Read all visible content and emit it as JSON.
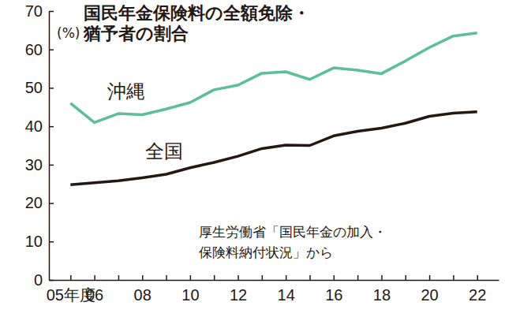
{
  "chart_data": {
    "type": "line",
    "title": [
      "国民年金保険料の全額免除・",
      "猶予者の割合"
    ],
    "y_label": "(%)",
    "source": [
      "厚生労働省「国民年金の加入・",
      "保険料納付状況」から"
    ],
    "categories": [
      "05年度",
      "06",
      null,
      "08",
      null,
      "10",
      null,
      "12",
      null,
      "14",
      null,
      "16",
      null,
      "18",
      null,
      "20",
      null,
      "22"
    ],
    "series": [
      {
        "name": "沖縄",
        "color": "#5cbf95",
        "values": [
          46,
          41,
          43.3,
          43,
          44.5,
          46.2,
          49.5,
          50.7,
          53.8,
          54.2,
          52.2,
          55.2,
          54.6,
          53.7,
          57,
          60.5,
          63.5,
          64.3
        ]
      },
      {
        "name": "全国",
        "color": "#231815",
        "values": [
          24.8,
          25.3,
          25.8,
          26.6,
          27.5,
          29.2,
          30.6,
          32.2,
          34.2,
          35.1,
          35,
          37.5,
          38.7,
          39.5,
          40.8,
          42.6,
          43.4,
          43.8
        ]
      }
    ],
    "ylim": [
      0,
      70
    ],
    "yticks": [
      0,
      10,
      20,
      30,
      40,
      50,
      60,
      70
    ],
    "grid": false
  }
}
